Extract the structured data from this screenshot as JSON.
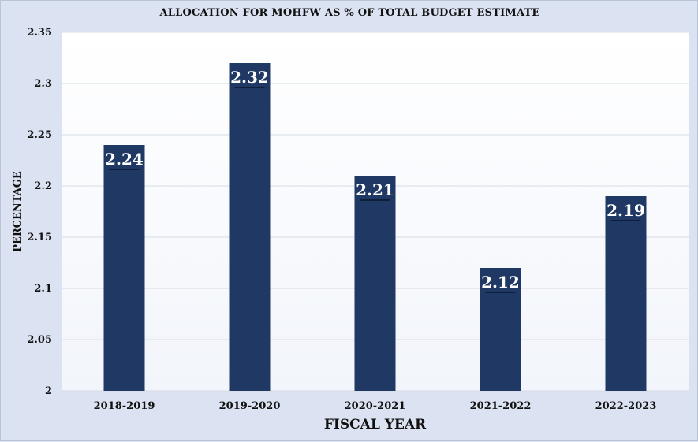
{
  "chart_data": {
    "type": "bar",
    "title": "ALLOCATION FOR MOHFW AS % OF TOTAL BUDGET ESTIMATE",
    "xlabel": "FISCAL YEAR",
    "ylabel": "PERCENTAGE",
    "categories": [
      "2018-2019",
      "2019-2020",
      "2020-2021",
      "2021-2022",
      "2022-2023"
    ],
    "values": [
      2.24,
      2.32,
      2.21,
      2.12,
      2.19
    ],
    "data_labels": [
      "2.24",
      "2.32",
      "2.21",
      "2.12",
      "2.19"
    ],
    "ylim": [
      2,
      2.35
    ],
    "yticks": [
      2,
      2.05,
      2.1,
      2.15,
      2.2,
      2.25,
      2.3,
      2.35
    ],
    "ytick_labels": [
      "2",
      "2.05",
      "2.1",
      "2.15",
      "2.2",
      "2.25",
      "2.3",
      "2.35"
    ],
    "grid": true,
    "bar_color": "#1f3864",
    "plot_background": "#ffffff"
  }
}
